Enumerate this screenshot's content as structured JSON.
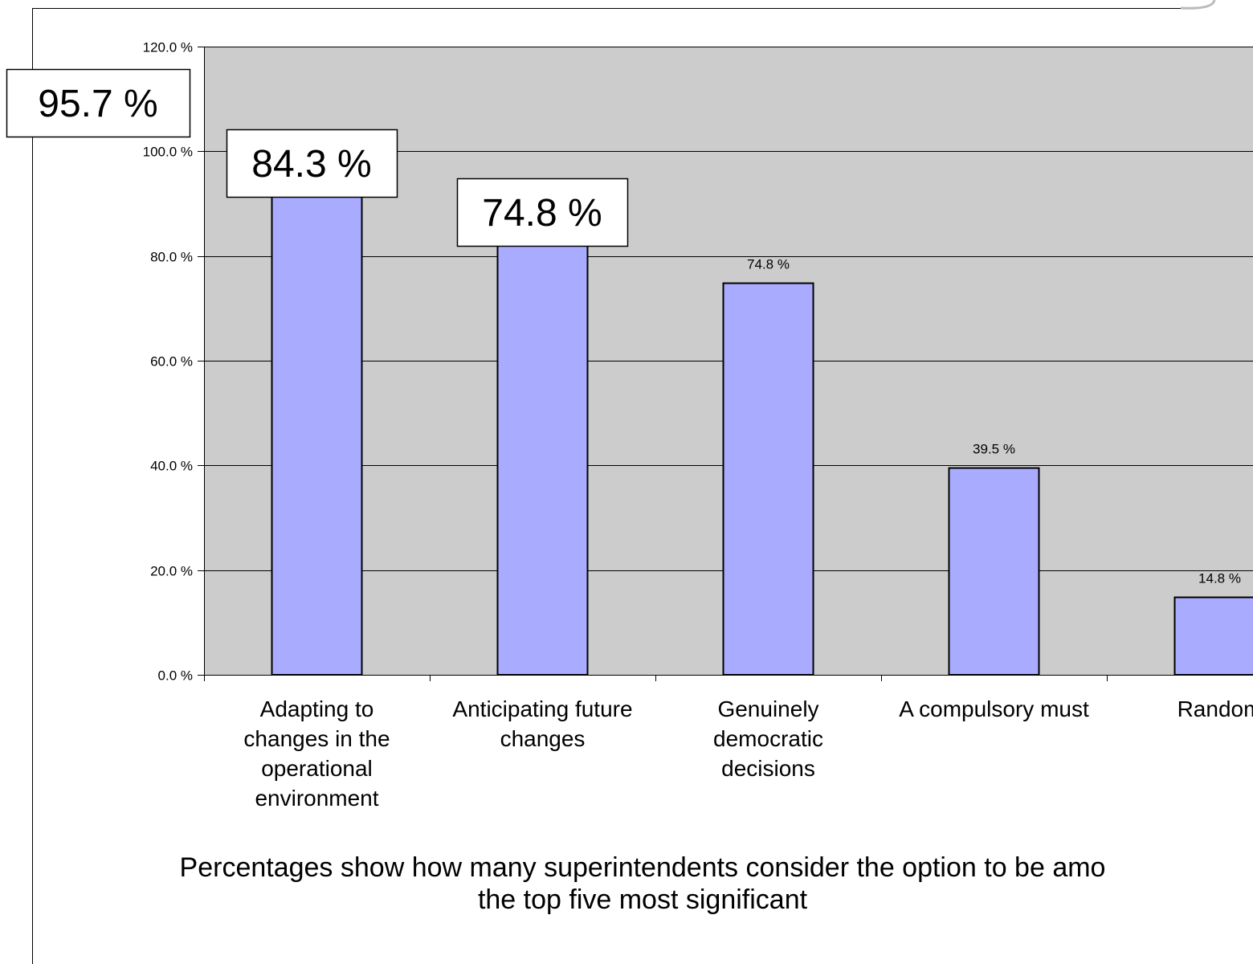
{
  "chart_data": {
    "type": "bar",
    "categories": [
      [
        "Adapting to",
        "changes in the",
        "operational",
        "environment"
      ],
      [
        "Anticipating future",
        "changes"
      ],
      [
        "Genuinely",
        "democratic",
        "decisions"
      ],
      [
        "A compulsory must"
      ],
      [
        "Random"
      ]
    ],
    "values": [
      95.7,
      84.3,
      74.8,
      39.5,
      14.8
    ],
    "value_labels": [
      "95.7 %",
      "84.3 %",
      "74.8 %",
      "39.5 %",
      "14.8 %"
    ],
    "callout_labels": [
      "95.7 %",
      "84.3 %",
      "74.8 %"
    ],
    "yticks": [
      "0.0 %",
      "20.0 %",
      "40.0 %",
      "60.0 %",
      "80.0 %",
      "100.0 %",
      "120.0 %"
    ],
    "ylim": [
      0,
      120
    ],
    "grid": true,
    "title": "",
    "xlabel": "",
    "ylabel": "",
    "colors": {
      "bar": "#a9abff",
      "plot_bg": "#cccccc",
      "grid": "#000000"
    }
  },
  "footnote": {
    "line1": "Percentages show how many superintendents consider the option to be amo",
    "line2": "the top five most significant"
  }
}
